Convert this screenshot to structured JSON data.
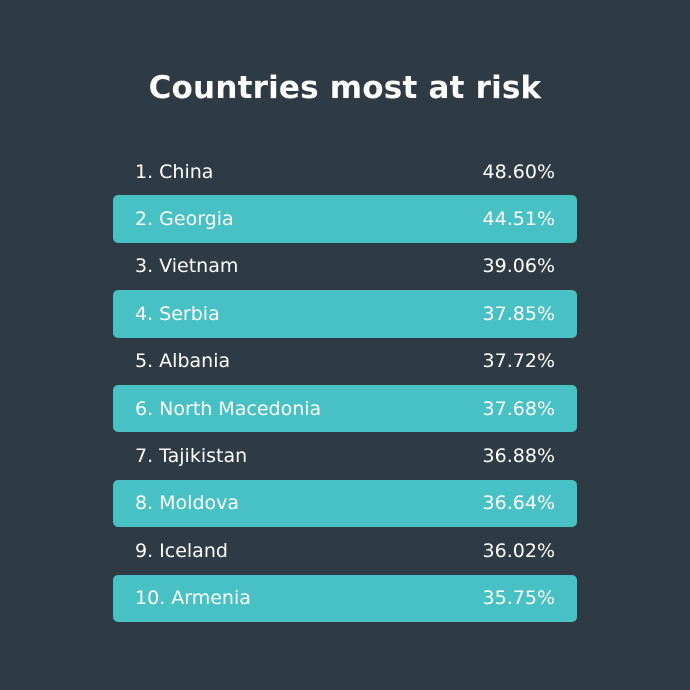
{
  "title": "Countries most at risk",
  "colors": {
    "background": "#2e3a44",
    "highlight": "#47c1c3",
    "text": "#ffffff"
  },
  "chart_data": {
    "type": "table",
    "title": "Countries most at risk",
    "rows": [
      {
        "label": "1. China",
        "value": "48.60%"
      },
      {
        "label": "2. Georgia",
        "value": "44.51%"
      },
      {
        "label": "3. Vietnam",
        "value": "39.06%"
      },
      {
        "label": "4. Serbia",
        "value": "37.85%"
      },
      {
        "label": "5. Albania",
        "value": "37.72%"
      },
      {
        "label": "6. North Macedonia",
        "value": "37.68%"
      },
      {
        "label": "7. Tajikistan",
        "value": "36.88%"
      },
      {
        "label": "8. Moldova",
        "value": "36.64%"
      },
      {
        "label": "9. Iceland",
        "value": "36.02%"
      },
      {
        "label": "10. Armenia",
        "value": "35.75%"
      }
    ]
  }
}
